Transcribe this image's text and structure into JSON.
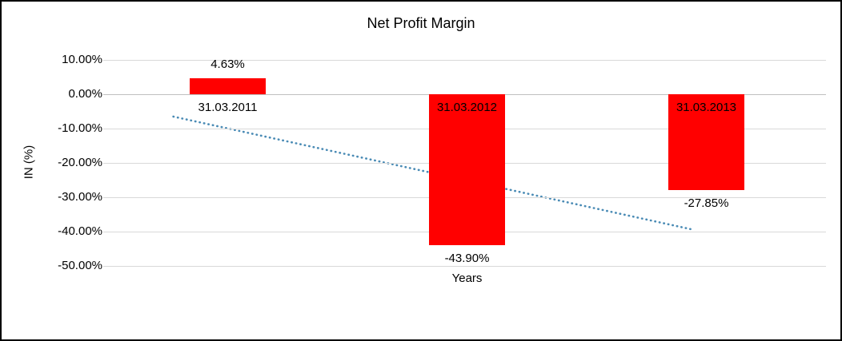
{
  "chart_data": {
    "type": "bar",
    "title": "Net Profit Margin",
    "xlabel": "Years",
    "ylabel": "IN (%)",
    "categories": [
      "31.03.2011",
      "31.03.2012",
      "31.03.2013"
    ],
    "values": [
      4.63,
      -43.9,
      -27.85
    ],
    "data_labels": [
      "4.63%",
      "-43.90%",
      "-27.85%"
    ],
    "y_ticks": [
      "10.00%",
      "0.00%",
      "-10.00%",
      "-20.00%",
      "-30.00%",
      "-40.00%",
      "-50.00%"
    ],
    "y_tick_values": [
      10,
      0,
      -10,
      -20,
      -30,
      -40,
      -50
    ],
    "ylim": [
      -50,
      10
    ],
    "grid": true,
    "legend": "none",
    "bar_color": "#ff0000",
    "gridline_color": "#d9d9d9",
    "trendline": {
      "style": "dotted",
      "color": "#4a8bb5",
      "start": {
        "x_frac": 0.091,
        "value": -6.5
      },
      "end": {
        "x_frac": 0.816,
        "value": -39.5
      }
    }
  }
}
